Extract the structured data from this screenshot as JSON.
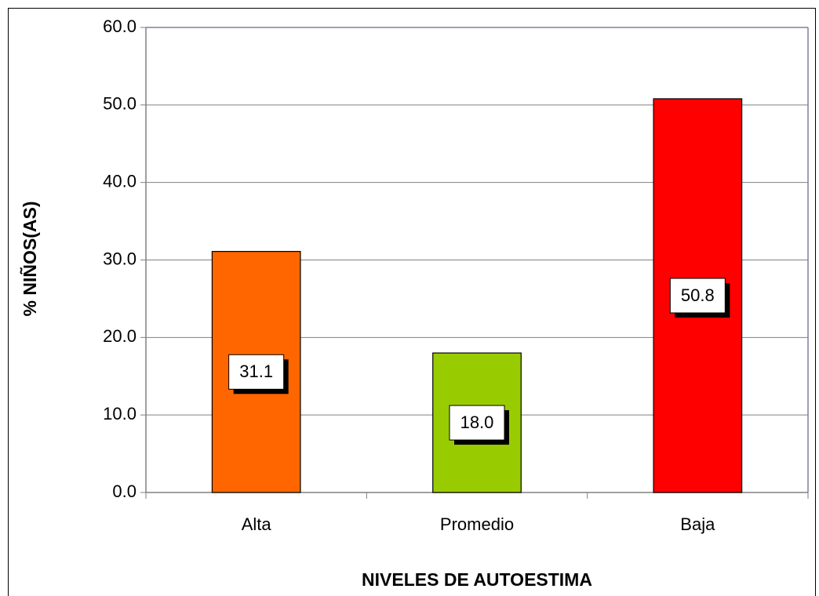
{
  "chart_data": {
    "type": "bar",
    "categories": [
      "Alta",
      "Promedio",
      "Baja"
    ],
    "values": [
      31.1,
      18.0,
      50.8
    ],
    "value_labels": [
      "31.1",
      "18.0",
      "50.8"
    ],
    "colors": [
      "#ff6600",
      "#99cc00",
      "#ff0000"
    ],
    "xlabel": "NIVELES DE AUTOESTIMA",
    "ylabel": "% NIÑOS(AS)",
    "ylim": [
      0,
      60
    ],
    "yticks": [
      {
        "value": 0,
        "label": "0.0"
      },
      {
        "value": 10,
        "label": "10.0"
      },
      {
        "value": 20,
        "label": "20.0"
      },
      {
        "value": 30,
        "label": "30.0"
      },
      {
        "value": 40,
        "label": "40.0"
      },
      {
        "value": 50,
        "label": "50.0"
      },
      {
        "value": 60,
        "label": "60.0"
      }
    ],
    "grid": true
  }
}
